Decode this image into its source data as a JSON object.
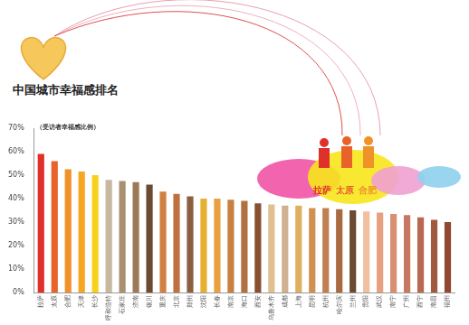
{
  "chart_data": {
    "type": "bar",
    "title": "中国城市幸福感排名",
    "y_label": "（受访者幸福感比例）",
    "annotations": [
      "拉萨",
      "太原",
      "合肥"
    ],
    "categories": [
      "拉萨",
      "太原",
      "合肥",
      "天津",
      "长沙",
      "呼和浩特",
      "石家庄",
      "济南",
      "银川",
      "重庆",
      "北京",
      "郑州",
      "沈阳",
      "长春",
      "南京",
      "海口",
      "西安",
      "乌鲁木齐",
      "成都",
      "上海",
      "昆明",
      "杭州",
      "哈尔滨",
      "兰州",
      "贵阳",
      "武汉",
      "南宁",
      "广州",
      "西宁",
      "南昌",
      "福州"
    ],
    "values": [
      59,
      56,
      52.5,
      51.5,
      50,
      48,
      47.5,
      47,
      46,
      43,
      42,
      41,
      40,
      40,
      39.5,
      39,
      38,
      37.5,
      37,
      37,
      36,
      36,
      35.5,
      35,
      34.5,
      34,
      33.5,
      33,
      32,
      31,
      30
    ],
    "colors": [
      "#e0302a",
      "#e8622a",
      "#f0922a",
      "#f5a623",
      "#f7d21c",
      "#c8b8a0",
      "#a89070",
      "#9c7a58",
      "#6b4a30",
      "#d08040",
      "#c07040",
      "#8a6040",
      "#e8b030",
      "#e8a040",
      "#c88040",
      "#b07040",
      "#885030",
      "#e0c090",
      "#d0b090",
      "#e0b060",
      "#d09050",
      "#c08050",
      "#a86a40",
      "#6a4a30",
      "#f0c0a0",
      "#e8a080",
      "#d89070",
      "#c87860",
      "#b86850",
      "#a05840",
      "#904830"
    ],
    "ylim": [
      0,
      70
    ],
    "yticks": [
      {
        "value": 0,
        "label": "0%"
      },
      {
        "value": 10,
        "label": "10%"
      },
      {
        "value": 20,
        "label": "20%"
      },
      {
        "value": 30,
        "label": "30%"
      },
      {
        "value": 40,
        "label": "40%"
      },
      {
        "value": 50,
        "label": "50%"
      },
      {
        "value": 60,
        "label": "60%"
      },
      {
        "value": 70,
        "label": "70%"
      }
    ],
    "grid": false
  }
}
